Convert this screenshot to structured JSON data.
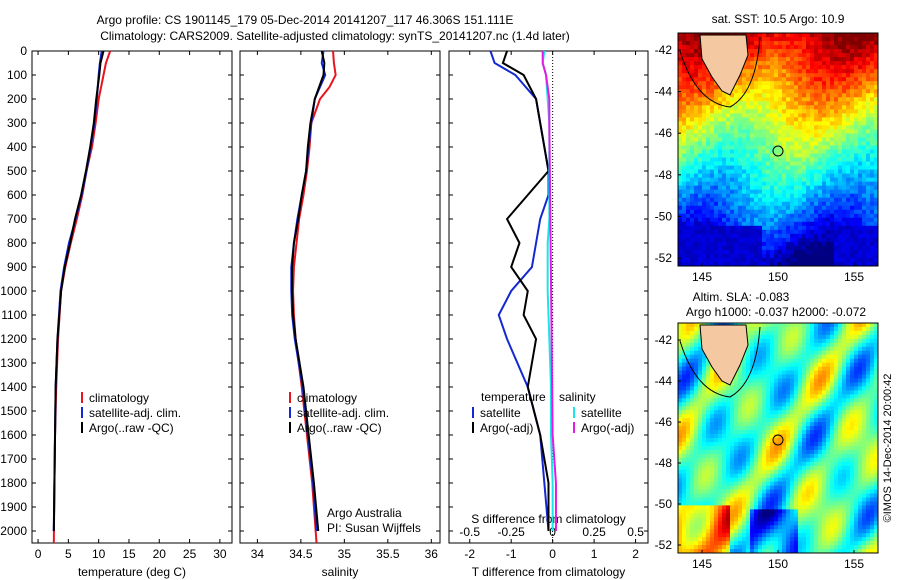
{
  "title": {
    "line1": "Argo profile: CS 1901145_179 05-Dec-2014 20141207_117 46.306S 151.111E",
    "line2": "Climatology: CARS2009. Satellite-adjusted climatology: synTS_20141207.nc (1.4d later)"
  },
  "colors": {
    "climatology": "#e8141e",
    "satellite": "#1428d2",
    "argo": "#000000",
    "sat_salinity": "#19e6e6",
    "argo_adj_salinity": "#e619e6"
  },
  "chart_data": [
    {
      "type": "line",
      "id": "temperature",
      "xlabel": "temperature (deg C)",
      "ylabel": "",
      "xlim": [
        -1,
        32
      ],
      "ylim": [
        2050,
        0
      ],
      "xticks": [
        "0",
        "5",
        "10",
        "15",
        "20",
        "25",
        "30"
      ],
      "yticks": [
        "0",
        "100",
        "200",
        "300",
        "400",
        "500",
        "600",
        "700",
        "800",
        "900",
        "1000",
        "1100",
        "1200",
        "1300",
        "1400",
        "1500",
        "1600",
        "1700",
        "1800",
        "1900",
        "2000"
      ],
      "legend": [
        "climatology",
        "satellite-adj. clim.",
        "Argo(..raw -QC)"
      ],
      "legend_position": "lower-right",
      "series": [
        {
          "name": "climatology",
          "depth": [
            0,
            50,
            100,
            200,
            300,
            400,
            500,
            600,
            700,
            800,
            900,
            1000,
            1200,
            1400,
            1600,
            1800,
            2050
          ],
          "values": [
            11.9,
            11.2,
            10.8,
            10.0,
            9.5,
            8.9,
            8.0,
            7.3,
            6.4,
            5.4,
            4.5,
            3.8,
            3.3,
            3.0,
            2.8,
            2.7,
            2.6
          ]
        },
        {
          "name": "satellite-adj. clim.",
          "depth": [
            0,
            50,
            100,
            200,
            300,
            400,
            500,
            600,
            700,
            800,
            900,
            1000,
            1200,
            1400,
            1600,
            1800,
            2000
          ],
          "values": [
            10.5,
            10.2,
            10.0,
            9.7,
            9.3,
            8.7,
            8.0,
            7.2,
            6.2,
            5.1,
            4.3,
            3.7,
            3.2,
            2.9,
            2.8,
            2.7,
            2.6
          ]
        },
        {
          "name": "Argo(..raw -QC)",
          "depth": [
            0,
            50,
            100,
            200,
            300,
            400,
            500,
            600,
            700,
            800,
            900,
            1000,
            1200,
            1400,
            1600,
            1800,
            2000
          ],
          "values": [
            10.8,
            10.3,
            10.1,
            9.6,
            9.2,
            8.6,
            7.9,
            7.1,
            6.1,
            5.3,
            4.4,
            3.8,
            3.2,
            2.9,
            2.8,
            2.7,
            2.6
          ]
        }
      ]
    },
    {
      "type": "line",
      "id": "salinity",
      "xlabel": "salinity",
      "xlim": [
        33.8,
        36.1
      ],
      "ylim": [
        2050,
        0
      ],
      "xticks": [
        "34",
        "34.5",
        "35",
        "35.5",
        "36"
      ],
      "legend": [
        "climatology",
        "satellite-adj. clim.",
        "Argo(..raw -QC)"
      ],
      "legend_position": "lower-right",
      "annotation": [
        "Argo Australia",
        "PI: Susan Wijffels"
      ],
      "series": [
        {
          "name": "climatology",
          "depth": [
            0,
            50,
            100,
            150,
            200,
            300,
            400,
            500,
            600,
            700,
            800,
            900,
            1000,
            1100,
            1200,
            1400,
            1600,
            1800,
            2050
          ],
          "values": [
            34.87,
            34.88,
            34.9,
            34.83,
            34.72,
            34.62,
            34.6,
            34.57,
            34.53,
            34.48,
            34.45,
            34.42,
            34.41,
            34.42,
            34.44,
            34.51,
            34.57,
            34.63,
            34.68
          ]
        },
        {
          "name": "satellite-adj. clim.",
          "depth": [
            0,
            50,
            100,
            150,
            200,
            300,
            400,
            500,
            600,
            700,
            800,
            900,
            1000,
            1100,
            1200,
            1400,
            1600,
            1800,
            2000
          ],
          "values": [
            34.76,
            34.74,
            34.78,
            34.72,
            34.66,
            34.62,
            34.59,
            34.56,
            34.51,
            34.46,
            34.42,
            34.39,
            34.39,
            34.4,
            34.43,
            34.52,
            34.58,
            34.64,
            34.68
          ]
        },
        {
          "name": "Argo(..raw -QC)",
          "depth": [
            0,
            50,
            100,
            150,
            200,
            300,
            400,
            500,
            600,
            700,
            800,
            900,
            1000,
            1100,
            1200,
            1400,
            1600,
            1800,
            2000
          ],
          "values": [
            34.74,
            34.77,
            34.76,
            34.71,
            34.66,
            34.61,
            34.58,
            34.56,
            34.51,
            34.47,
            34.42,
            34.4,
            34.4,
            34.41,
            34.44,
            34.53,
            34.59,
            34.65,
            34.7
          ]
        }
      ]
    },
    {
      "type": "line",
      "id": "difference",
      "xlabel": "T difference from climatology",
      "xlabel_top": "S difference from climatology",
      "xlim": [
        -2.5,
        2.3
      ],
      "ylim": [
        2050,
        0
      ],
      "xticks": [
        "-2",
        "-1",
        "0",
        "1",
        "2"
      ],
      "sticks": [
        "-0.5",
        "-0.25",
        "0",
        "0.25",
        "0.5"
      ],
      "legend_titles": [
        "temperature",
        "salinity"
      ],
      "legend": [
        "satellite",
        "Argo(-adj)",
        "satellite",
        "Argo(-adj)"
      ],
      "legend_position": "lower-center",
      "series": [
        {
          "name": "satellite",
          "variable": "temperature",
          "depth": [
            0,
            50,
            100,
            200,
            300,
            400,
            500,
            600,
            700,
            800,
            900,
            1000,
            1100,
            1200,
            1400,
            1600,
            1800,
            2000
          ],
          "values": [
            -1.5,
            -1.4,
            -0.9,
            -0.4,
            -0.3,
            -0.2,
            -0.1,
            -0.1,
            -0.3,
            -0.4,
            -0.5,
            -1.0,
            -1.3,
            -1.1,
            -0.6,
            -0.3,
            -0.2,
            -0.1
          ]
        },
        {
          "name": "Argo(-adj)",
          "variable": "temperature",
          "depth": [
            0,
            50,
            100,
            200,
            300,
            400,
            500,
            600,
            700,
            800,
            900,
            1000,
            1100,
            1200,
            1400,
            1600,
            1800,
            2000
          ],
          "values": [
            -1.1,
            -1.2,
            -0.7,
            -0.4,
            -0.3,
            -0.2,
            -0.1,
            -0.6,
            -1.1,
            -0.8,
            -1.0,
            -0.6,
            -0.7,
            -0.4,
            -0.6,
            -0.3,
            -0.1,
            -0.1
          ]
        },
        {
          "name": "satellite",
          "variable": "salinity",
          "depth": [
            0,
            50,
            100,
            200,
            300,
            400,
            500,
            600,
            700,
            800,
            900,
            1000,
            1200,
            1400,
            1600,
            1800,
            2000
          ],
          "values": [
            -0.05,
            -0.06,
            -0.04,
            -0.03,
            -0.02,
            -0.02,
            -0.02,
            -0.02,
            -0.02,
            -0.03,
            -0.03,
            -0.03,
            -0.02,
            -0.01,
            -0.01,
            0.0,
            0.0
          ]
        },
        {
          "name": "Argo(-adj)",
          "variable": "salinity",
          "depth": [
            0,
            50,
            100,
            200,
            300,
            1600,
            1800,
            1900,
            2000
          ],
          "values": [
            -0.06,
            -0.06,
            -0.04,
            -0.02,
            -0.02,
            0.0,
            0.02,
            0.02,
            0.02
          ]
        }
      ]
    }
  ],
  "map_sst": {
    "title": "sat. SST: 10.5  Argo: 10.9",
    "yticks": [
      "-42",
      "-44",
      "-46",
      "-48",
      "-50",
      "-52"
    ],
    "xticks": [
      "145",
      "150",
      "155"
    ]
  },
  "map_sla": {
    "title1": "Altim. SLA: -0.083",
    "title2": "Argo h1000: -0.037  h2000: -0.072",
    "yticks": [
      "-42",
      "-44",
      "-46",
      "-48",
      "-50",
      "-52"
    ],
    "xticks": [
      "145",
      "150",
      "155"
    ],
    "credit": "©IMOS 14-Dec-2014 20:00:42"
  }
}
